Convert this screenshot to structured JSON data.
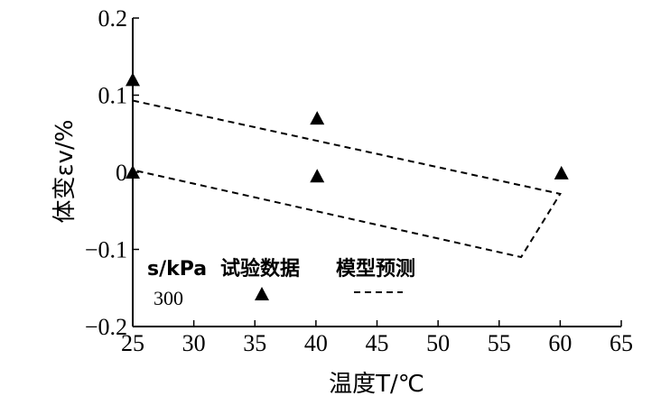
{
  "chart_data": {
    "type": "scatter",
    "xlabel": "温度T/℃",
    "ylabel": "体变εv/%",
    "xlim": [
      25,
      65
    ],
    "ylim": [
      -0.2,
      0.2
    ],
    "x_ticks": [
      "25",
      "30",
      "35",
      "40",
      "45",
      "50",
      "55",
      "60",
      "65"
    ],
    "y_ticks": [
      "-0.2",
      "-0.1",
      "0",
      "0.1",
      "0.2"
    ],
    "grid": false,
    "series": [
      {
        "name": "试验数据",
        "kind": "scatter",
        "marker": "triangle",
        "points": [
          {
            "x": 25.0,
            "y": 0.12
          },
          {
            "x": 25.0,
            "y": 0.0
          },
          {
            "x": 40.1,
            "y": 0.07
          },
          {
            "x": 40.1,
            "y": -0.005
          },
          {
            "x": 60.1,
            "y": -0.001
          }
        ]
      },
      {
        "name": "模型预测",
        "kind": "line",
        "style": "dashed",
        "points": [
          {
            "x": 25.0,
            "y": 0.093
          },
          {
            "x": 60.0,
            "y": -0.028
          },
          {
            "x": 56.8,
            "y": -0.11
          },
          {
            "x": 25.0,
            "y": 0.003
          }
        ]
      }
    ],
    "legend": {
      "placement": "bottom-left",
      "header_label": "s/kPa",
      "s_value": "300",
      "entries": [
        {
          "label": "试验数据",
          "marker": "triangle"
        },
        {
          "label": "模型预测",
          "marker": "dashed-line"
        }
      ]
    }
  }
}
